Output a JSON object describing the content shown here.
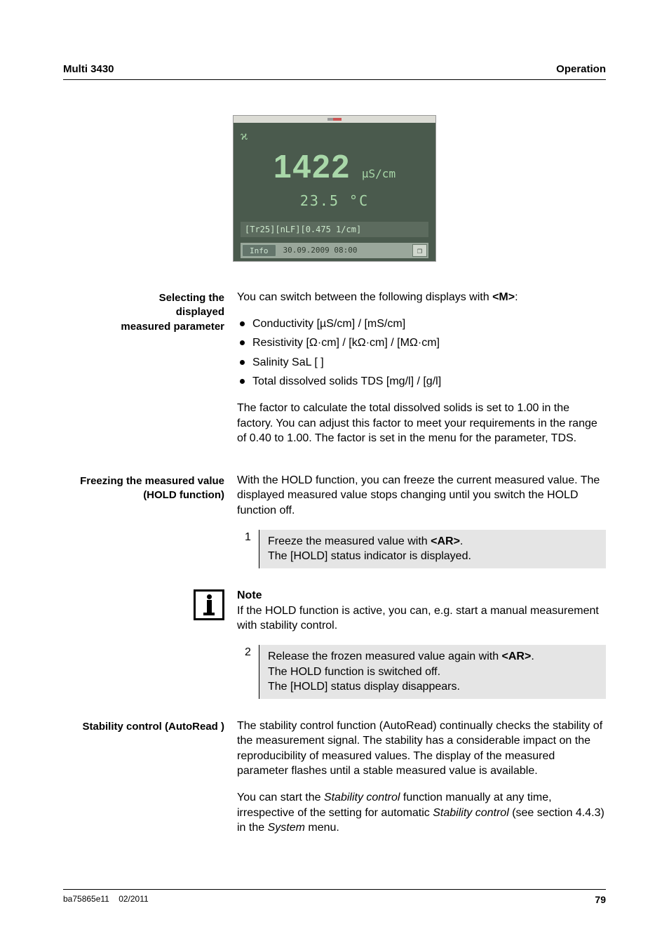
{
  "header": {
    "left": "Multi 3430",
    "right": "Operation"
  },
  "screen": {
    "symbol": "ϰ",
    "value": "1422",
    "unit": "µS/cm",
    "temperature": "23.5 °C",
    "params": "[Tr25][nLF][0.475 1/cm]",
    "info_label": "Info",
    "datetime": "30.09.2009 08:00",
    "icon": "❐"
  },
  "selecting": {
    "label": "Selecting the\ndisplayed\nmeasured parameter",
    "intro_pre": "You can switch between the following displays with ",
    "intro_key": "<M>",
    "intro_post": ":",
    "items": [
      "Conductivity [µS/cm] / [mS/cm]",
      "Resistivity [Ω·cm] / [kΩ·cm] / [MΩ·cm]",
      "Salinity SaL [ ]",
      "Total dissolved solids TDS [mg/l] / [g/l]"
    ],
    "para": "The factor to calculate the total dissolved solids is set to 1.00 in the factory. You can adjust this factor to meet your requirements in the range of 0.40 to 1.00. The factor is set in the menu for the parameter, TDS."
  },
  "freezing": {
    "label": "Freezing the measured value (HOLD function)",
    "para": "With the HOLD function, you can freeze the current measured value. The displayed measured value stops changing until you switch the HOLD function off.",
    "step1": {
      "num": "1",
      "pre": "Freeze the measured value with ",
      "key": "<AR>",
      "post": ".",
      "line2": "The [HOLD] status indicator is displayed."
    },
    "note_title": "Note",
    "note_body": "If the HOLD function is active, you can, e.g. start a manual measurement with stability control.",
    "step2": {
      "num": "2",
      "pre": "Release the frozen measured value again with ",
      "key": "<AR>",
      "post": ".",
      "line2": "The HOLD function is switched off.",
      "line3": "The [HOLD] status display disappears."
    }
  },
  "stability": {
    "label": "Stability control (AutoRead )",
    "para1": "The stability control function (AutoRead) continually checks the stability of the measurement signal. The stability has a considerable impact on the reproducibility of measured values. The display of the measured parameter flashes until a stable measured value is available.",
    "p2a": "You can start the ",
    "p2em1": "Stability control",
    "p2b": " function manually at any time, irrespective of the setting for automatic ",
    "p2em2": "Stability control",
    "p2c": " (see section 4.4.3) in the ",
    "p2em3": "System",
    "p2d": " menu."
  },
  "footer": {
    "doc": "ba75865e11",
    "date": "02/2011",
    "page": "79"
  }
}
